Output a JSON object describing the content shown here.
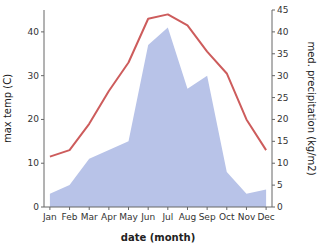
{
  "chart_data": {
    "type": "line",
    "xlabel": "date (month)",
    "ylabel": "max temp (C)",
    "y2label": "med. precipitation (kg/m2)",
    "categories": [
      "Jan",
      "Feb",
      "Mar",
      "Apr",
      "May",
      "Jun",
      "Jul",
      "Aug",
      "Sep",
      "Oct",
      "Nov",
      "Dec"
    ],
    "series": [
      {
        "type": "area",
        "axis": "y2",
        "color": "#b8c3e8",
        "values": [
          3.0,
          5.0,
          11.0,
          13.0,
          15.0,
          37.0,
          41.0,
          27.0,
          30.0,
          8.0,
          3.0,
          4.0
        ]
      },
      {
        "type": "line",
        "color": "#cd5c5c",
        "values": [
          11.5,
          13.0,
          19.0,
          26.5,
          33.0,
          43.0,
          44.0,
          41.5,
          35.5,
          30.5,
          20.0,
          13.0
        ]
      }
    ],
    "ylim": [
      0,
      45
    ],
    "yticks": [
      0,
      10,
      20,
      30,
      40
    ],
    "y2lim": [
      0,
      45
    ],
    "y2ticks": [
      0,
      5,
      10,
      15,
      20,
      25,
      30,
      35,
      40,
      45
    ],
    "grid": false
  }
}
